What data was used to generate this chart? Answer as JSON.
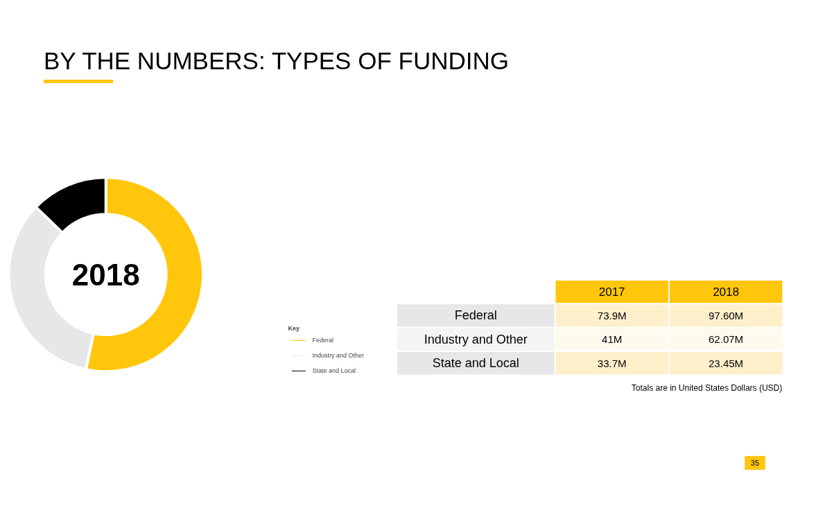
{
  "chart_data": [
    {
      "type": "donut",
      "title": "BY THE NUMBERS: TYPES OF FUNDING",
      "categories": [
        "Federal",
        "Industry and Other",
        "State and Local"
      ],
      "values": [
        53.3,
        33.9,
        12.8
      ],
      "colors": [
        "#ffc60b",
        "#e6e7e8",
        "#000000"
      ],
      "legend": "bottom right",
      "legend_title": "Key",
      "annotations": [
        "2018"
      ]
    },
    {
      "type": "other",
      "categories": [
        "Federal",
        "Industry and Other",
        "State and Local"
      ],
      "data_labels": true,
      "series": [
        {
          "name": "2017",
          "colors": [
            "#fff0cc",
            "#fffaee",
            "#fff0cc"
          ],
          "values": [
            73.9,
            41,
            33.7
          ],
          "value_labels": [
            "73.9M",
            "41M",
            "33.7M"
          ]
        },
        {
          "name": "2018",
          "colors": [
            "#fff0cc",
            "#fffaee",
            "#fff0cc"
          ],
          "values": [
            97.6,
            62.07,
            23.45
          ],
          "value_labels": [
            "97.60M",
            "62.07M",
            "23.45M"
          ]
        }
      ],
      "annotations": [
        "Totals are in United States Dollars (USD)",
        "35"
      ]
    }
  ]
}
